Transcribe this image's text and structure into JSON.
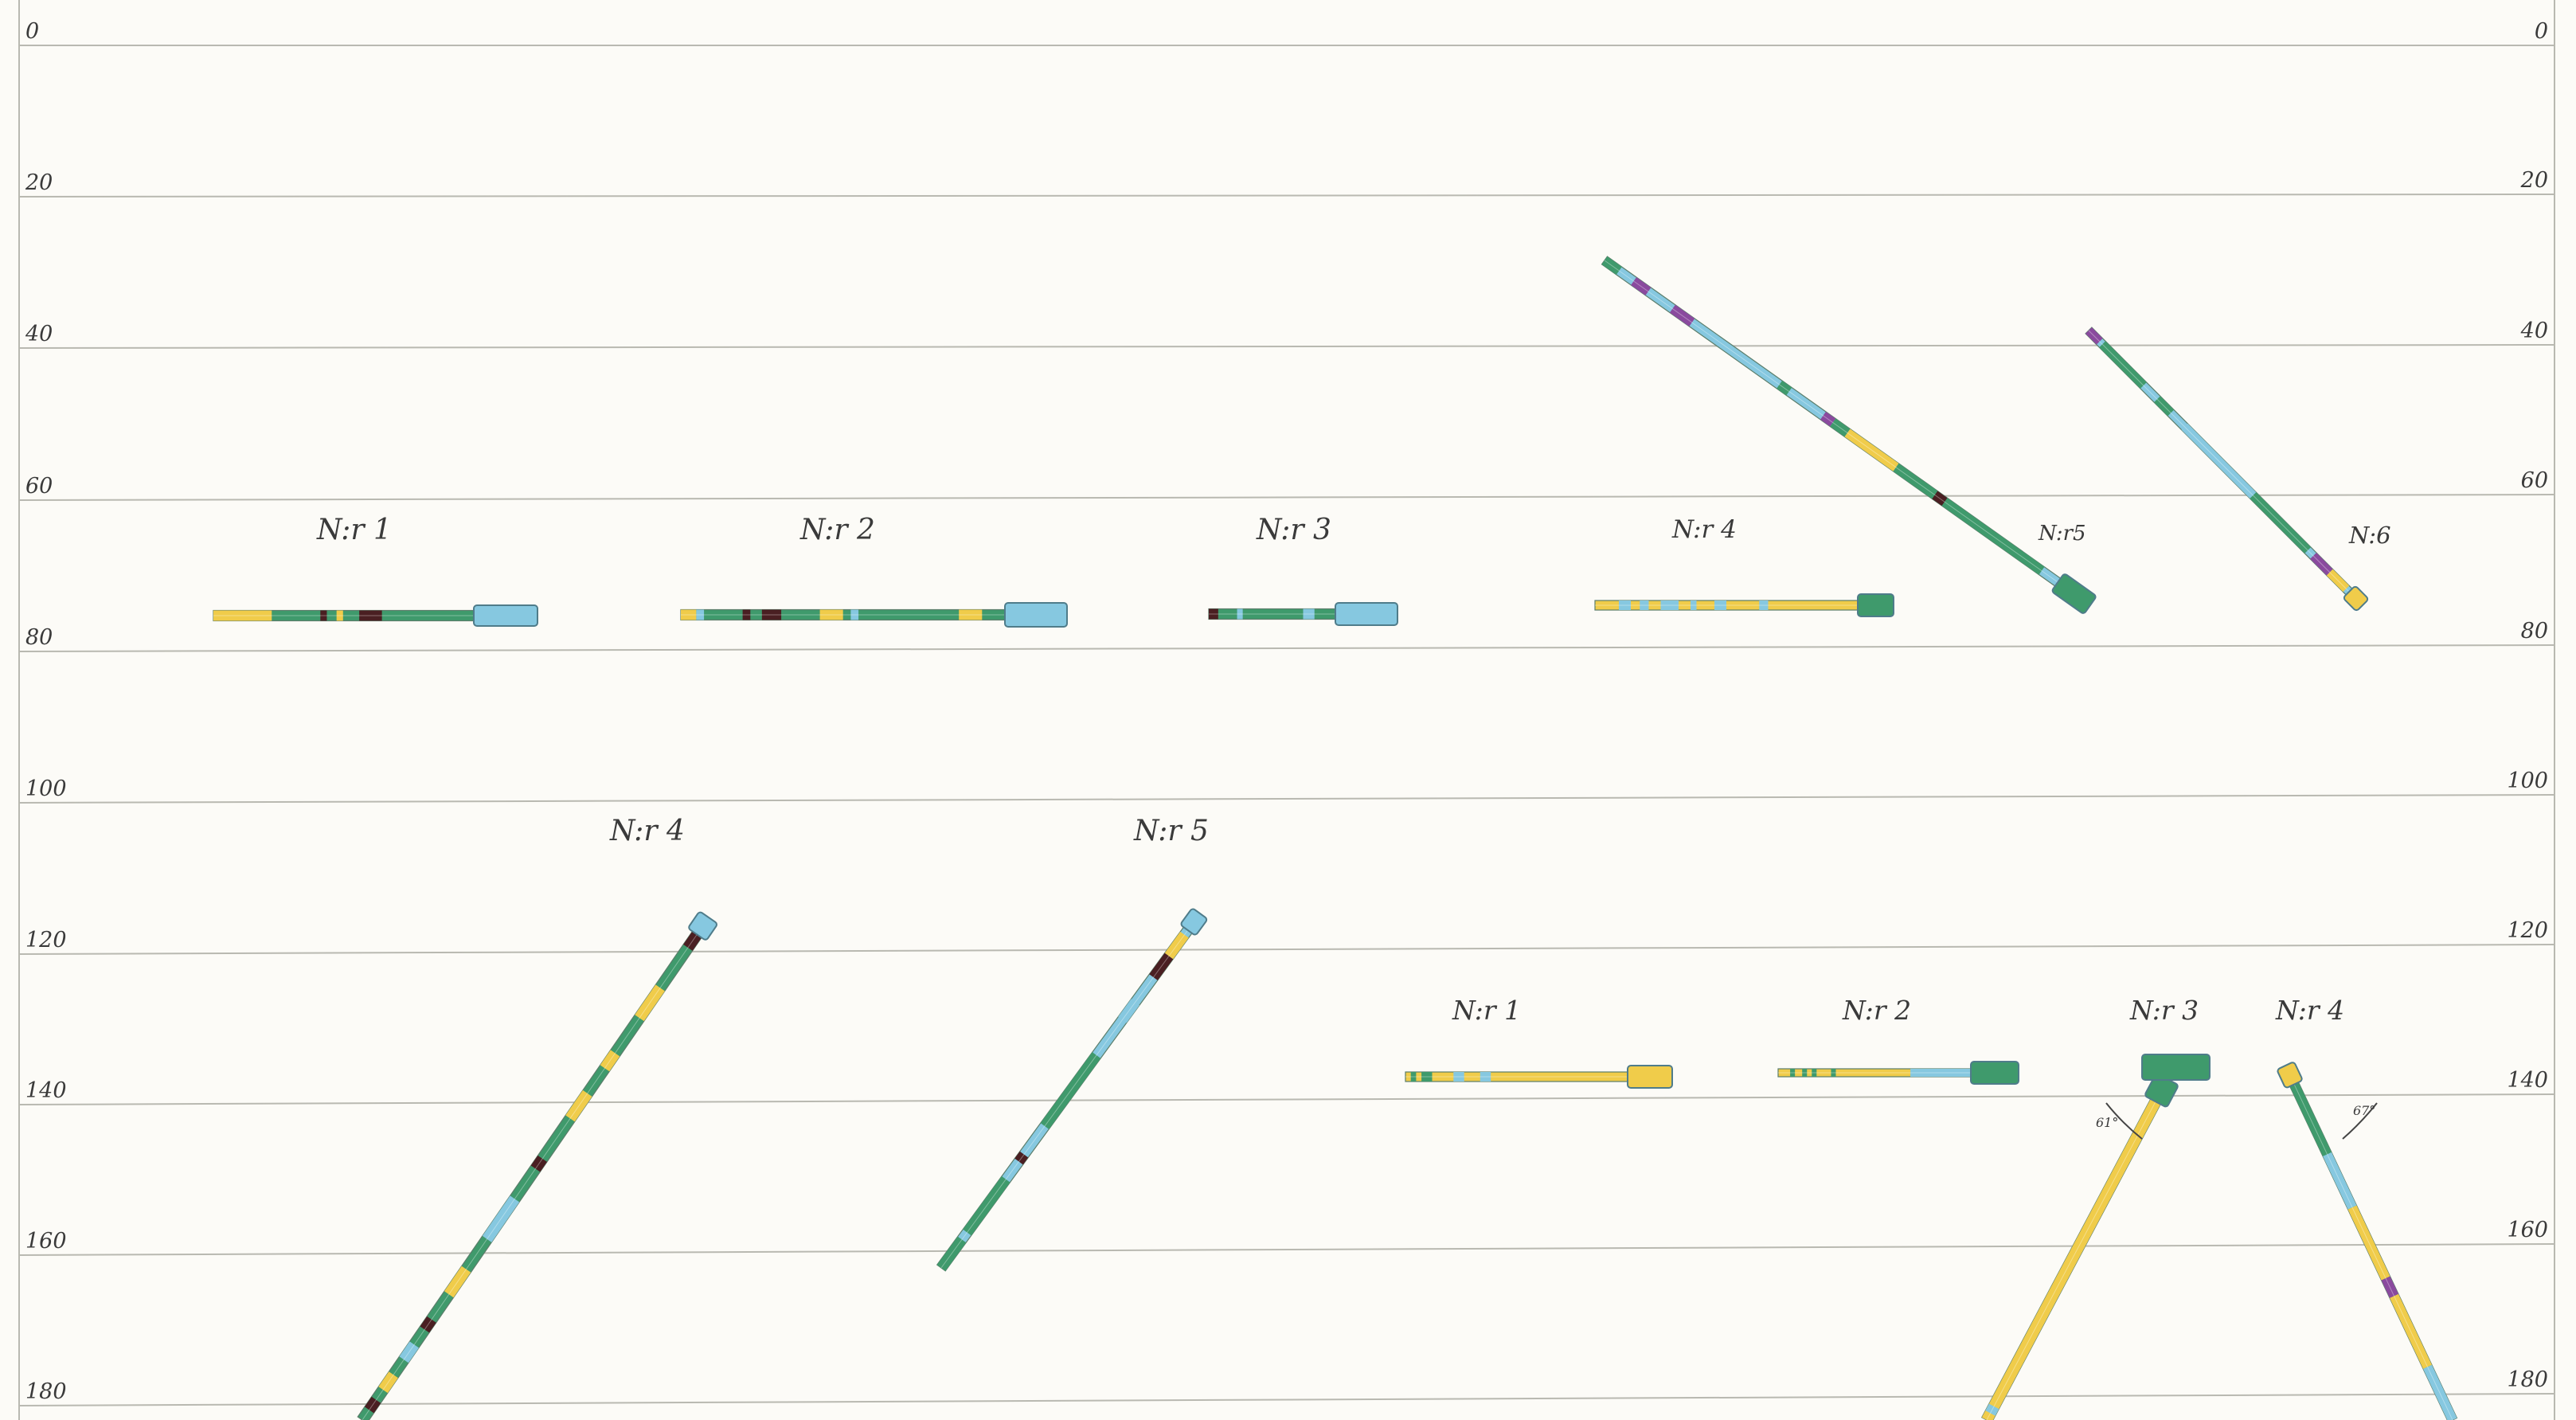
{
  "depth_axis": {
    "ticks": [
      "0",
      "20",
      "40",
      "60",
      "80",
      "100",
      "120",
      "140",
      "160",
      "180"
    ],
    "right_ticks": [
      "0",
      "20",
      "40",
      "60",
      "80",
      "100",
      "120",
      "140",
      "160",
      "180"
    ]
  },
  "colors": {
    "green": "#3f9a6c",
    "yellow": "#f0cc4a",
    "blue": "#86c8e0",
    "purple": "#8a4a9e",
    "dark": "#4a1f22",
    "grid": "#b9b9b1"
  },
  "upper_group": {
    "labels": [
      "N:r 1",
      "N:r 2",
      "N:r 3",
      "N:r 4",
      "N:r5",
      "N:6"
    ]
  },
  "lower_group": {
    "labels_left": [
      "N:r 4",
      "N:r 5"
    ],
    "labels_right": [
      "N:r 1",
      "N:r 2",
      "N:r 3",
      "N:r 4"
    ],
    "angles": [
      "61°",
      "67°"
    ]
  }
}
